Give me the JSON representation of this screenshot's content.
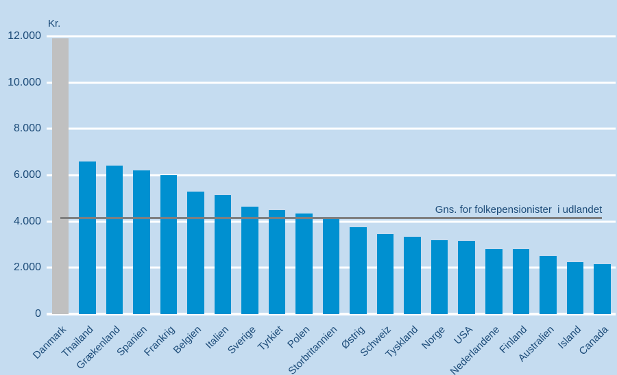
{
  "chart_data": {
    "type": "bar",
    "title": "",
    "unit_label": "Kr.",
    "categories": [
      "Danmark",
      "Thailand",
      "Grækenland",
      "Spanien",
      "Frankrig",
      "Belgien",
      "Italien",
      "Sverige",
      "Tyrkiet",
      "Polen",
      "Storbritannien",
      "Østrig",
      "Schweiz",
      "Tyskland",
      "Norge",
      "USA",
      "Nederlandene",
      "Finland",
      "Australien",
      "Island",
      "Canada"
    ],
    "values": [
      12000,
      6600,
      6400,
      6200,
      6000,
      5300,
      5150,
      4650,
      4500,
      4350,
      4100,
      3750,
      3450,
      3350,
      3200,
      3150,
      2800,
      2800,
      2500,
      2250,
      2150
    ],
    "highlight": {
      "category": "Danmark",
      "color": "#c0c0c0",
      "clipped_at_top": true
    },
    "average_line": {
      "value": 4100,
      "label": "Gns. for folkepensionister  i udlandet",
      "color": "#7f7f7f"
    },
    "ylim": [
      0,
      12000
    ],
    "ytick_interval": 2000,
    "yticks_top_to_bottom": [
      "12.000",
      "10.000",
      "8.000",
      "6.000",
      "4.000",
      "2.000",
      "0"
    ],
    "grid": "horizontal-white-lines",
    "legend": "none",
    "bar_color": "#0090d0",
    "background_color": "#c5dcf0",
    "text_color": "#1c4b78",
    "gridline_color": "#ffffff"
  }
}
